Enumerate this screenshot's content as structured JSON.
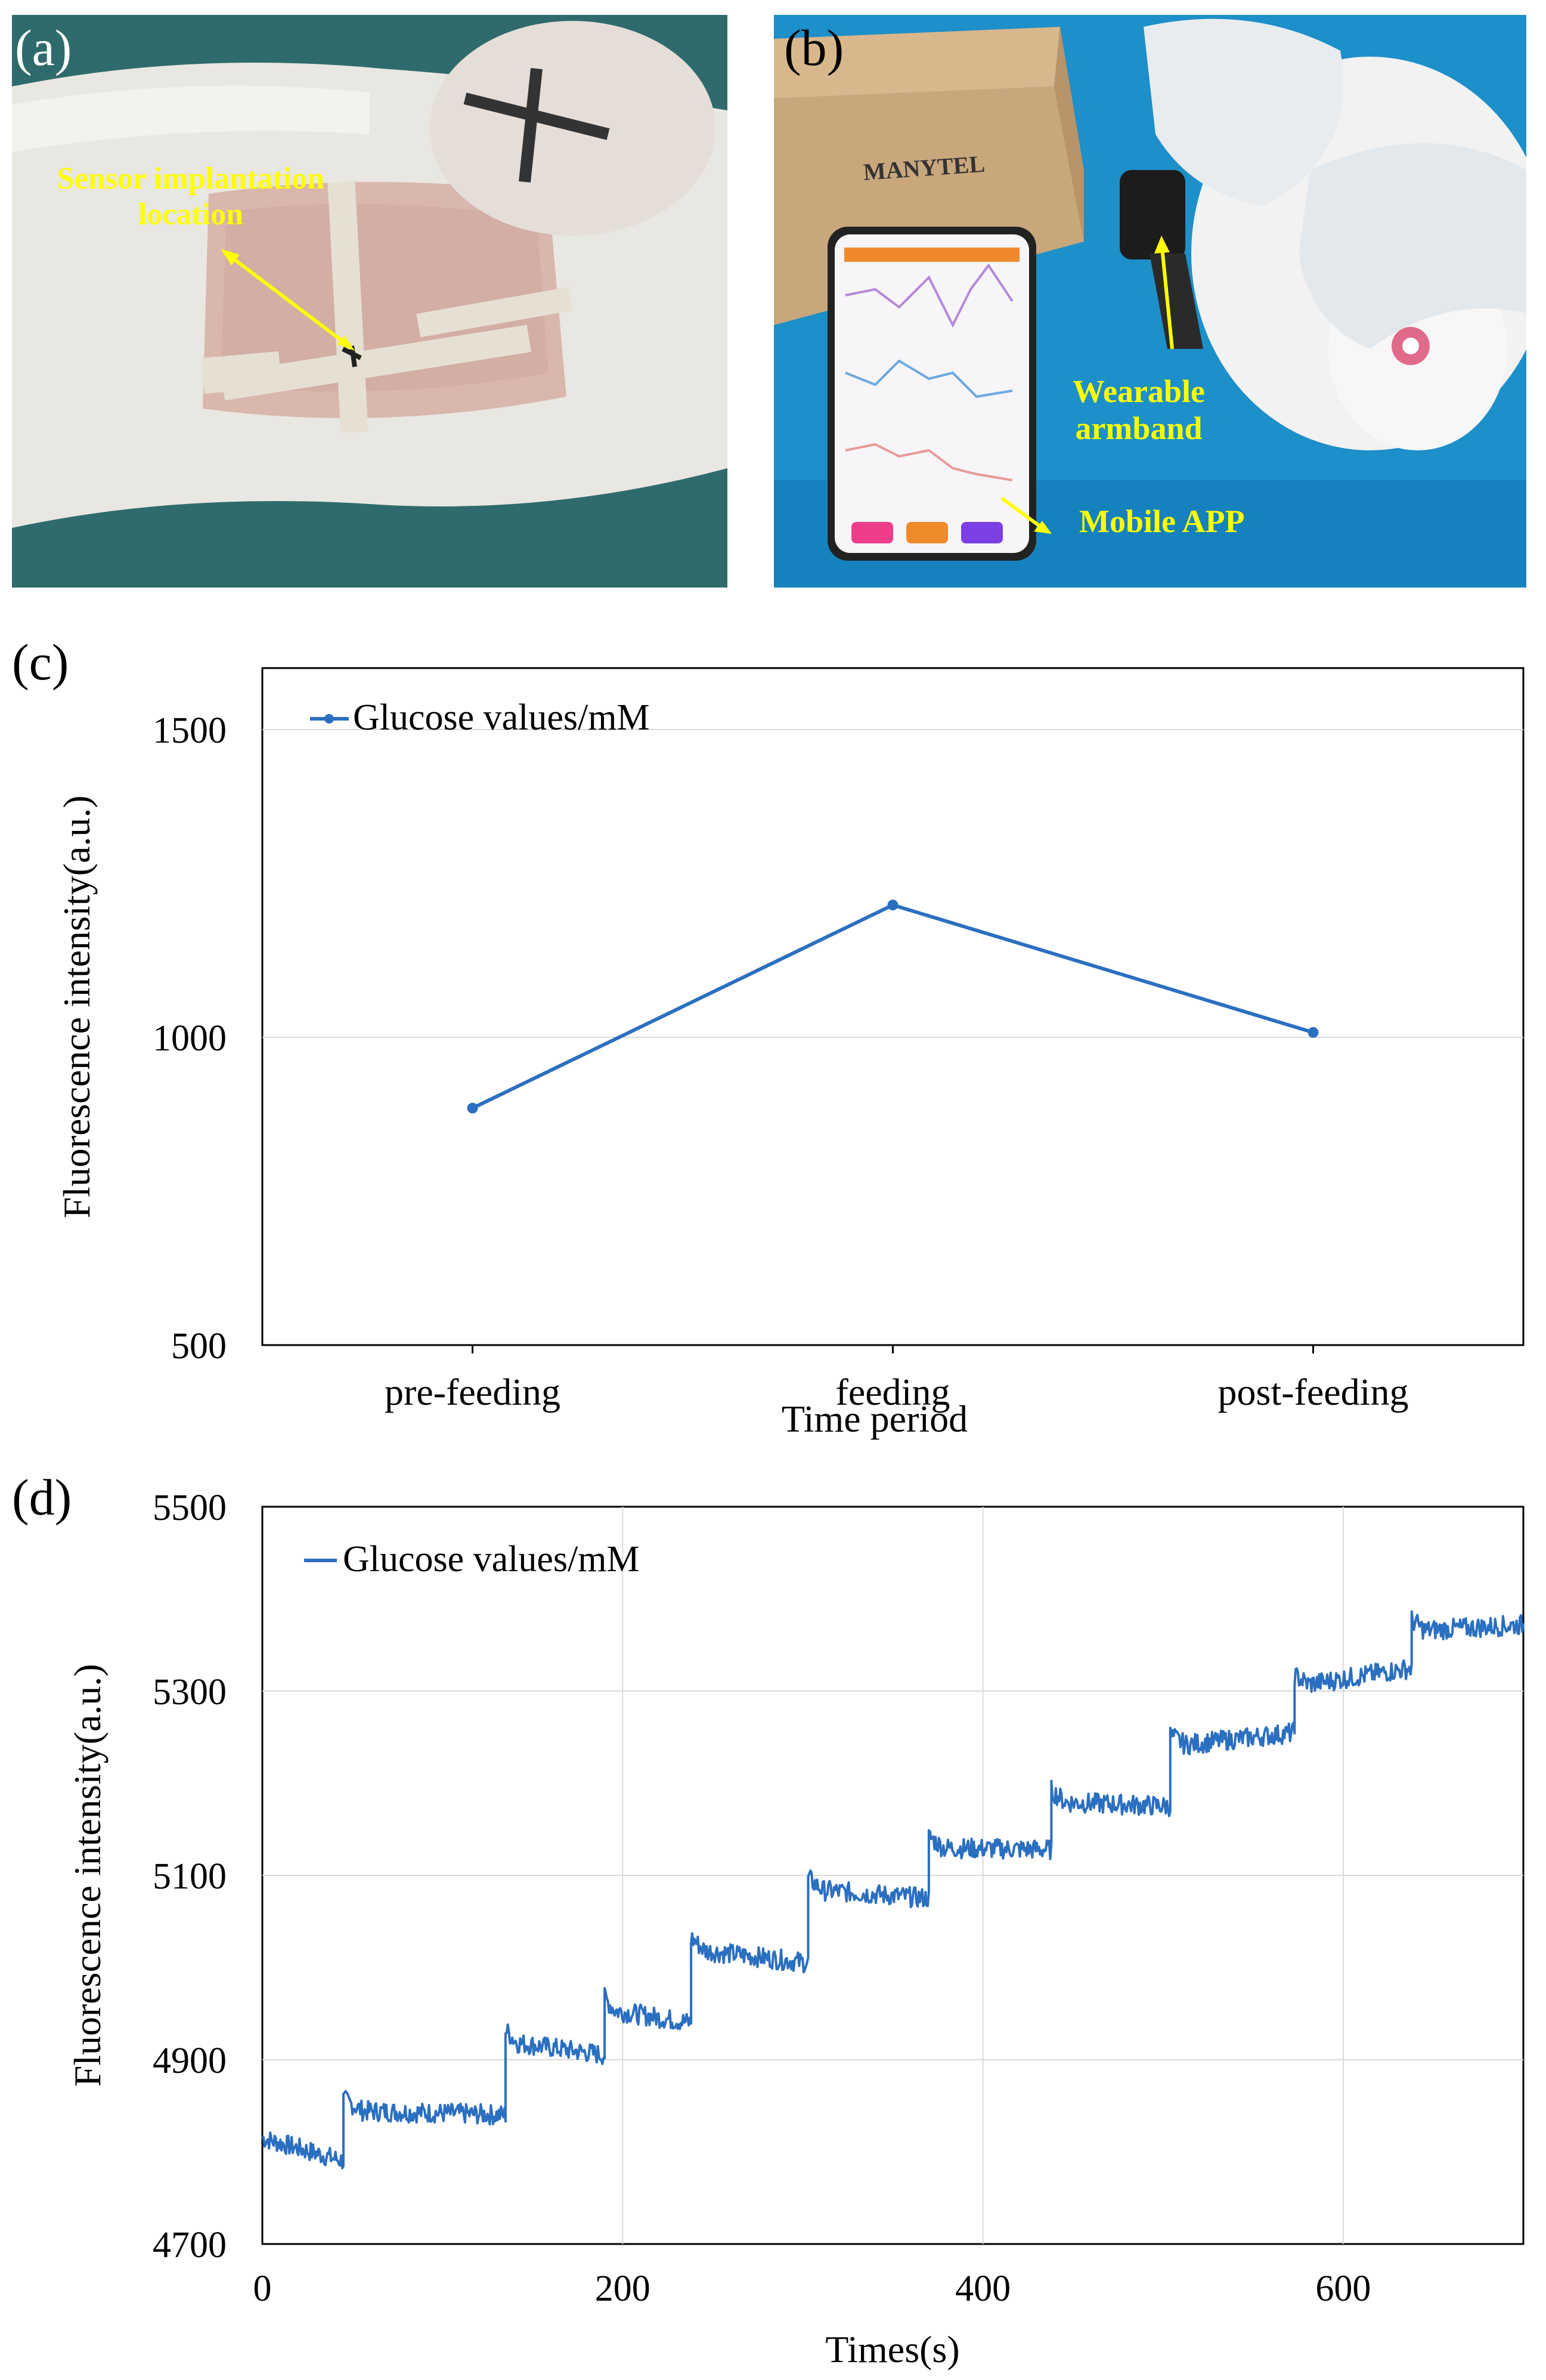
{
  "panels": {
    "a": {
      "label": "(a)",
      "annotation_line1": "Sensor implantation",
      "annotation_line2": "location",
      "colors": {
        "background": "#2f6b6c",
        "fur": "#e9e7e2",
        "skin": "#d9b7ad",
        "tape": "#e6e0d3"
      }
    },
    "b": {
      "label": "(b)",
      "wearable_line1": "Wearable",
      "wearable_line2": "armband",
      "mobile_app": "Mobile APP",
      "box_brand": "MANYTEL",
      "colors": {
        "background": "#1d8fc9",
        "box": "#c9a77c",
        "phone": "#222222",
        "glove": "#e8ecef"
      }
    },
    "c": {
      "label": "(c)",
      "chart_data": {
        "type": "line",
        "categories": [
          "pre-feeding",
          "feeding",
          "post-feeding"
        ],
        "series": [
          {
            "name": "Glucose values/mM",
            "values": [
              885,
              1215,
              1008
            ],
            "color": "#2b6fc0"
          }
        ],
        "xlabel": "Time period",
        "ylabel": "Fluorescence intensity(a.u.)",
        "ylim": [
          500,
          1600
        ],
        "yticks": [
          500,
          1000,
          1500
        ],
        "grid": true,
        "legend": "top-left"
      }
    },
    "d": {
      "label": "(d)",
      "chart_data": {
        "type": "line",
        "xlabel": "Times(s)",
        "ylabel": "Fluorescence intensity(a.u.)",
        "xlim": [
          0,
          700
        ],
        "ylim": [
          4700,
          5500
        ],
        "xticks": [
          0,
          200,
          400,
          600
        ],
        "yticks": [
          4700,
          4900,
          5100,
          5300,
          5500
        ],
        "grid": true,
        "legend": "top-left",
        "series": [
          {
            "name": "Glucose values/mM",
            "color": "#2b6fc0",
            "steps": [
              {
                "x": [
                  0,
                  45
                ],
                "y": [
                  4815,
                  4790
                ]
              },
              {
                "x": [
                  45,
                  135
                ],
                "y": [
                  4845,
                  4840
                ]
              },
              {
                "x": [
                  135,
                  190
                ],
                "y": [
                  4920,
                  4905
                ]
              },
              {
                "x": [
                  190,
                  238
                ],
                "y": [
                  4955,
                  4940
                ]
              },
              {
                "x": [
                  238,
                  303
                ],
                "y": [
                  5020,
                  5005
                ]
              },
              {
                "x": [
                  303,
                  370
                ],
                "y": [
                  5085,
                  5075
                ]
              },
              {
                "x": [
                  370,
                  438
                ],
                "y": [
                  5130,
                  5128
                ]
              },
              {
                "x": [
                  438,
                  504
                ],
                "y": [
                  5180,
                  5175
                ]
              },
              {
                "x": [
                  504,
                  573
                ],
                "y": [
                  5240,
                  5255
                ]
              },
              {
                "x": [
                  573,
                  638
                ],
                "y": [
                  5305,
                  5325
                ]
              },
              {
                "x": [
                  638,
                  700
                ],
                "y": [
                  5365,
                  5372
                ]
              }
            ]
          }
        ]
      }
    }
  }
}
